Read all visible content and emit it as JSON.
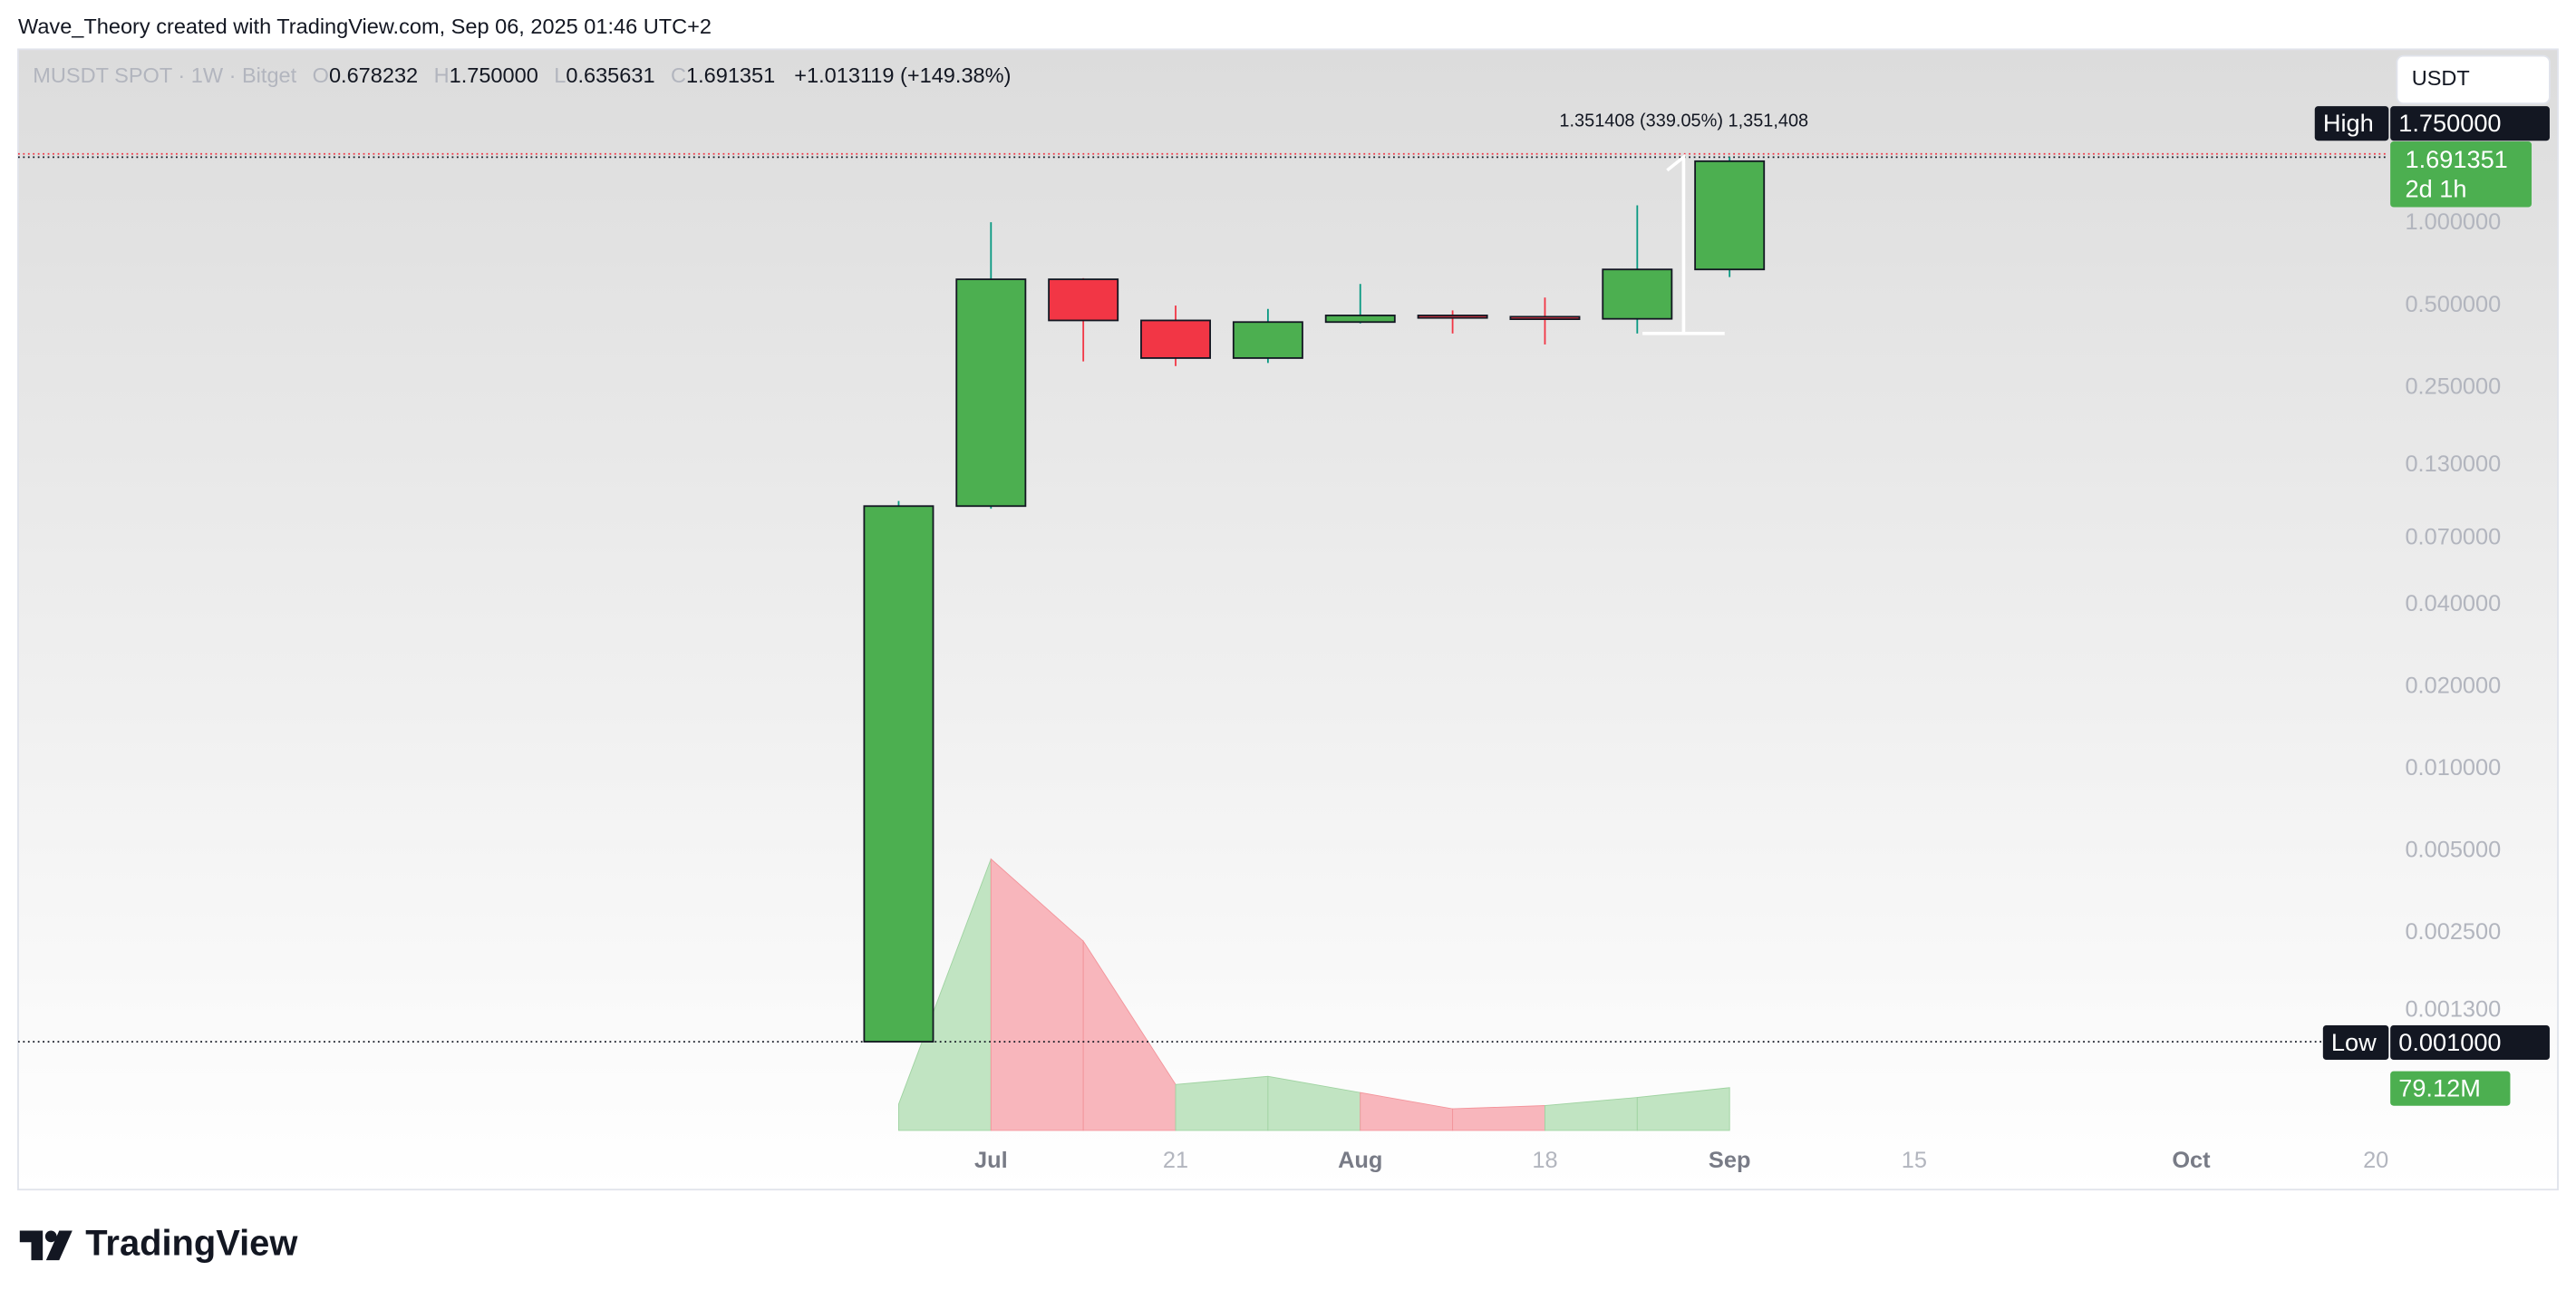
{
  "header": "Wave_Theory created with TradingView.com, Sep 06, 2025 01:46 UTC+2",
  "brand": "TradingView",
  "currency_button": "USDT",
  "chart_data": {
    "type": "candlestick",
    "symbol": "MUSDT SPOT · 1W · Bitget",
    "legend_keys": [
      "O",
      "H",
      "L",
      "C"
    ],
    "legend_values": [
      "0.678232",
      "1.750000",
      "0.635631",
      "1.691351"
    ],
    "change": "+1.013119 (+149.38%)",
    "measure_label": "1.351408 (339.05%) 1,351,408",
    "high_marker": {
      "label": "High",
      "value": "1.750000"
    },
    "low_marker": {
      "label": "Low",
      "value": "0.001000"
    },
    "last_price": {
      "value": "1.691351",
      "countdown": "2d 1h"
    },
    "categories": [
      null,
      "Jul",
      null,
      "21",
      null,
      "Aug",
      null,
      "18",
      null,
      "Sep",
      null,
      "15",
      null,
      null,
      "Oct",
      null,
      "20"
    ],
    "open": [
      0.001,
      0.092,
      0.624,
      0.441,
      0.321,
      0.435,
      0.46,
      0.455,
      0.447,
      0.678232,
      null,
      null,
      null,
      null,
      null,
      null,
      null
    ],
    "high": [
      0.096,
      1.01,
      0.63,
      0.5,
      0.486,
      0.6,
      0.48,
      0.535,
      1.165,
      1.75,
      null,
      null,
      null,
      null,
      null,
      null,
      null
    ],
    "low": [
      0.001,
      0.09,
      0.312,
      0.3,
      0.308,
      0.43,
      0.395,
      0.36,
      0.395,
      0.635631,
      null,
      null,
      null,
      null,
      null,
      null,
      null
    ],
    "close": [
      0.092,
      0.624,
      0.441,
      0.321,
      0.435,
      0.46,
      0.455,
      0.447,
      0.678232,
      1.691351,
      null,
      null,
      null,
      null,
      null,
      null,
      null
    ],
    "up_color": "#4caf50",
    "down_color": "#f23645",
    "log_scale": true,
    "ylim": [
      0.000287,
      4.35
    ],
    "yticks": [
      {
        "value": 1,
        "label": "1.000000"
      },
      {
        "value": 0.5,
        "label": "0.500000"
      },
      {
        "value": 0.25,
        "label": "0.250000"
      },
      {
        "value": 0.13,
        "label": "0.130000"
      },
      {
        "value": 0.07,
        "label": "0.070000"
      },
      {
        "value": 0.04,
        "label": "0.040000"
      },
      {
        "value": 0.02,
        "label": "0.020000"
      },
      {
        "value": 0.01,
        "label": "0.010000"
      },
      {
        "value": 0.005,
        "label": "0.005000"
      },
      {
        "value": 0.0025,
        "label": "0.002500"
      },
      {
        "value": 0.0013,
        "label": "0.001300"
      }
    ],
    "volume": {
      "values": [
        48700000,
        502000000,
        350000000,
        85000000,
        100000000,
        70000000,
        40000000,
        46000000,
        61000000,
        79120000,
        null,
        null,
        null,
        null,
        null,
        null,
        null
      ],
      "value_labels": [
        null,
        null,
        null,
        null,
        null,
        null,
        null,
        null,
        null,
        "79.12M",
        null,
        null,
        null,
        null,
        null,
        null,
        null
      ],
      "ylim": [
        0,
        550000000
      ],
      "up_color": "#c1e4c2",
      "down_color": "#f8b6bc"
    }
  }
}
